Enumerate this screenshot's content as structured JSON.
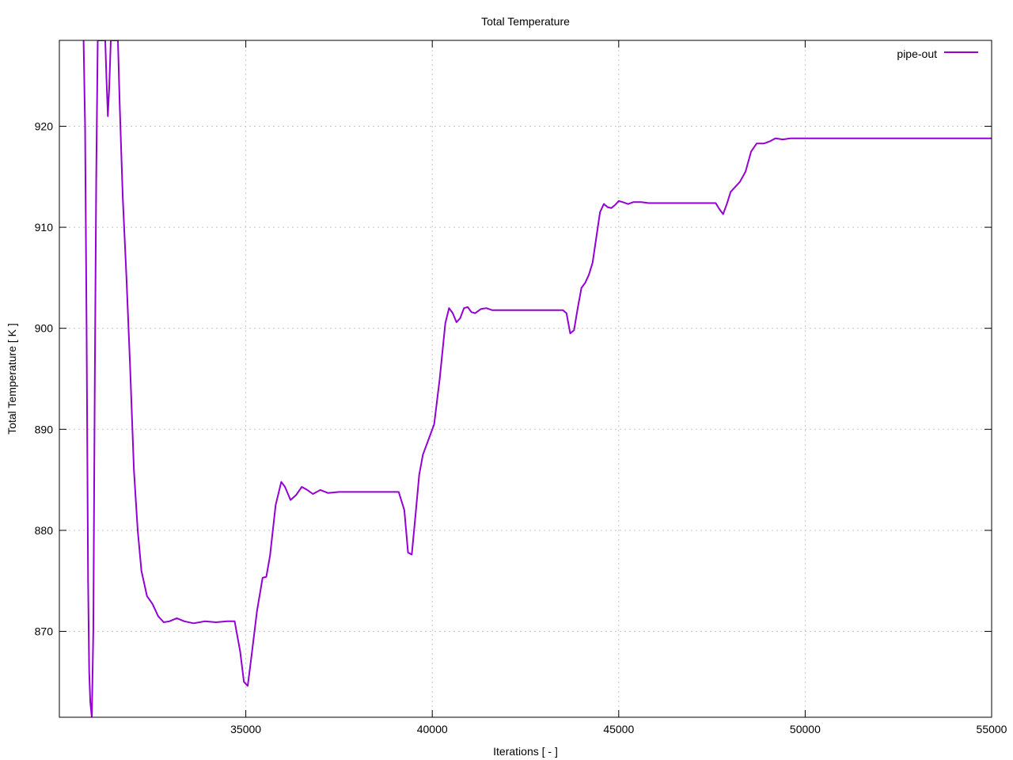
{
  "chart_data": {
    "type": "line",
    "title": "Total Temperature",
    "xlabel": "Iterations [ - ]",
    "ylabel": "Total Temperature [ K ]",
    "xlim": [
      30000,
      55000
    ],
    "ylim": [
      861.5,
      928.5
    ],
    "xticks": [
      35000,
      40000,
      45000,
      50000,
      55000
    ],
    "yticks": [
      870,
      880,
      890,
      900,
      910,
      920
    ],
    "grid": true,
    "legend_position": "top-right",
    "series": [
      {
        "name": "pipe-out",
        "color": "#9400d3",
        "points": [
          [
            30650,
            928.5
          ],
          [
            30690,
            920
          ],
          [
            30730,
            900
          ],
          [
            30770,
            875
          ],
          [
            30800,
            866
          ],
          [
            30830,
            863
          ],
          [
            30870,
            861.5
          ],
          [
            30910,
            870
          ],
          [
            30950,
            895
          ],
          [
            30990,
            915
          ],
          [
            31030,
            928.5
          ],
          [
            31230,
            928.5
          ],
          [
            31260,
            925
          ],
          [
            31300,
            921
          ],
          [
            31340,
            924
          ],
          [
            31380,
            928.5
          ],
          [
            31570,
            928.5
          ],
          [
            31620,
            922
          ],
          [
            31700,
            913
          ],
          [
            31800,
            905
          ],
          [
            31900,
            896
          ],
          [
            32000,
            886
          ],
          [
            32100,
            880
          ],
          [
            32200,
            876
          ],
          [
            32350,
            873.5
          ],
          [
            32500,
            872.7
          ],
          [
            32650,
            871.5
          ],
          [
            32800,
            870.9
          ],
          [
            32950,
            871
          ],
          [
            33150,
            871.3
          ],
          [
            33350,
            871
          ],
          [
            33600,
            870.8
          ],
          [
            33900,
            871
          ],
          [
            34200,
            870.9
          ],
          [
            34500,
            871
          ],
          [
            34700,
            871
          ],
          [
            34850,
            868
          ],
          [
            34950,
            865
          ],
          [
            35050,
            864.6
          ],
          [
            35150,
            867.5
          ],
          [
            35300,
            872
          ],
          [
            35450,
            875.3
          ],
          [
            35550,
            875.4
          ],
          [
            35650,
            877.5
          ],
          [
            35800,
            882.5
          ],
          [
            35950,
            884.8
          ],
          [
            36050,
            884.3
          ],
          [
            36200,
            883
          ],
          [
            36350,
            883.5
          ],
          [
            36500,
            884.3
          ],
          [
            36650,
            884
          ],
          [
            36800,
            883.6
          ],
          [
            37000,
            884
          ],
          [
            37200,
            883.7
          ],
          [
            37500,
            883.8
          ],
          [
            37800,
            883.8
          ],
          [
            38200,
            883.8
          ],
          [
            38700,
            883.8
          ],
          [
            39100,
            883.8
          ],
          [
            39250,
            882
          ],
          [
            39350,
            877.8
          ],
          [
            39450,
            877.6
          ],
          [
            39550,
            881.5
          ],
          [
            39650,
            885.5
          ],
          [
            39750,
            887.5
          ],
          [
            39900,
            889
          ],
          [
            40050,
            890.5
          ],
          [
            40200,
            895
          ],
          [
            40350,
            900.5
          ],
          [
            40450,
            902
          ],
          [
            40550,
            901.5
          ],
          [
            40650,
            900.6
          ],
          [
            40750,
            901
          ],
          [
            40850,
            902
          ],
          [
            40950,
            902.1
          ],
          [
            41050,
            901.6
          ],
          [
            41150,
            901.5
          ],
          [
            41300,
            901.9
          ],
          [
            41450,
            902
          ],
          [
            41600,
            901.8
          ],
          [
            41800,
            901.8
          ],
          [
            42000,
            901.8
          ],
          [
            42500,
            901.8
          ],
          [
            43000,
            901.8
          ],
          [
            43500,
            901.8
          ],
          [
            43600,
            901.5
          ],
          [
            43700,
            899.5
          ],
          [
            43800,
            899.8
          ],
          [
            43900,
            902
          ],
          [
            44000,
            904
          ],
          [
            44100,
            904.5
          ],
          [
            44200,
            905.3
          ],
          [
            44300,
            906.5
          ],
          [
            44400,
            909
          ],
          [
            44500,
            911.5
          ],
          [
            44600,
            912.3
          ],
          [
            44700,
            912
          ],
          [
            44800,
            911.9
          ],
          [
            44900,
            912.2
          ],
          [
            45000,
            912.6
          ],
          [
            45100,
            912.5
          ],
          [
            45250,
            912.3
          ],
          [
            45400,
            912.5
          ],
          [
            45600,
            912.5
          ],
          [
            45800,
            912.4
          ],
          [
            46200,
            912.4
          ],
          [
            46800,
            912.4
          ],
          [
            47400,
            912.4
          ],
          [
            47600,
            912.4
          ],
          [
            47700,
            911.8
          ],
          [
            47800,
            911.3
          ],
          [
            47900,
            912.3
          ],
          [
            48000,
            913.5
          ],
          [
            48100,
            913.9
          ],
          [
            48250,
            914.5
          ],
          [
            48400,
            915.5
          ],
          [
            48550,
            917.5
          ],
          [
            48700,
            918.3
          ],
          [
            48900,
            918.3
          ],
          [
            49050,
            918.5
          ],
          [
            49200,
            918.8
          ],
          [
            49400,
            918.7
          ],
          [
            49600,
            918.8
          ],
          [
            50000,
            918.8
          ],
          [
            50500,
            918.8
          ],
          [
            51500,
            918.8
          ],
          [
            52500,
            918.8
          ],
          [
            53500,
            918.8
          ],
          [
            55000,
            918.8
          ]
        ]
      }
    ]
  }
}
